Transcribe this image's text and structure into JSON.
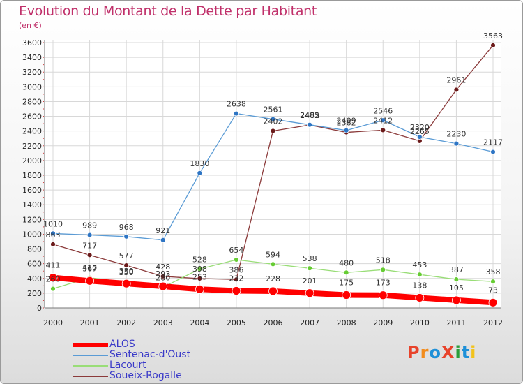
{
  "header": {
    "title": "Evolution du Montant de la Dette par Habitant",
    "subtitle": "(en €)"
  },
  "logo": {
    "text": "ProXiti",
    "colors": [
      "#e8432b",
      "#f28c1c",
      "#1e90d8",
      "#e8432b",
      "#2a9d3a",
      "#1e90d8",
      "#f2c31c"
    ]
  },
  "colors": {
    "title": "#c0306a",
    "legend_text": "#3a3ac8",
    "grid": "#d8d8d8"
  },
  "chart_data": {
    "type": "line",
    "title": "Evolution du Montant de la Dette par Habitant",
    "subtitle": "(en €)",
    "categories": [
      "2000",
      "2001",
      "2002",
      "2003",
      "2004",
      "2005",
      "2006",
      "2007",
      "2008",
      "2009",
      "2010",
      "2011",
      "2012"
    ],
    "ylim": [
      0,
      3600
    ],
    "yticks": [
      0,
      200,
      400,
      600,
      800,
      1000,
      1200,
      1400,
      1600,
      1800,
      2000,
      2200,
      2400,
      2600,
      2800,
      3000,
      3200,
      3400,
      3600
    ],
    "grid": true,
    "legend_position": "bottom-left",
    "series": [
      {
        "name": "ALOS",
        "color": "#ff0000",
        "line_width": 8,
        "marker_color": "#ff0000",
        "values": [
          411,
          367,
          330,
          293,
          253,
          232,
          228,
          201,
          175,
          173,
          138,
          105,
          73
        ],
        "labels": [
          "411",
          "367",
          "330",
          "293",
          "253",
          "232",
          "228",
          "201",
          "175",
          "173",
          "138",
          "105",
          "73"
        ]
      },
      {
        "name": "Sentenac-d'Oust",
        "color": "#5a9bd5",
        "line_width": 1.3,
        "marker_color": "#2e75c4",
        "values": [
          1010,
          989,
          968,
          921,
          1830,
          2638,
          2561,
          2485,
          2409,
          2546,
          2320,
          2230,
          2117
        ],
        "labels": [
          "1010",
          "989",
          "968",
          "921",
          "1830",
          "2638",
          "2561",
          "2485",
          "2409",
          "2546",
          "2320",
          "2230",
          "2117"
        ]
      },
      {
        "name": "Lacourt",
        "color": "#99dd77",
        "line_width": 1.3,
        "marker_color": "#66cc33",
        "values": [
          260,
          410,
          350,
          280,
          528,
          654,
          594,
          538,
          480,
          518,
          453,
          387,
          358
        ],
        "labels": [
          "260",
          "410",
          "350",
          "280",
          "528",
          "654",
          "594",
          "538",
          "480",
          "518",
          "453",
          "387",
          "358"
        ]
      },
      {
        "name": "Soueix-Rogalle",
        "color": "#8b3a3a",
        "line_width": 1.3,
        "marker_color": "#6b1a1a",
        "values": [
          863,
          717,
          577,
          428,
          398,
          386,
          2402,
          2482,
          2382,
          2412,
          2265,
          2961,
          3563
        ],
        "labels": [
          "863",
          "717",
          "577",
          "428",
          "398",
          "386",
          "2402",
          "2482",
          "2382",
          "2412",
          "2265",
          "2961",
          "3563"
        ]
      }
    ]
  }
}
